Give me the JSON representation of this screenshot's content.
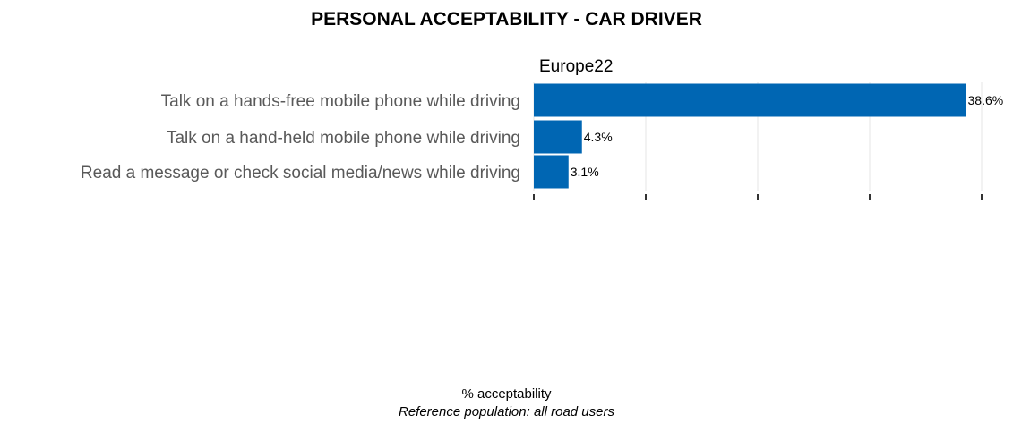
{
  "chart_data": {
    "type": "bar",
    "orientation": "horizontal",
    "title": "PERSONAL ACCEPTABILITY - CAR DRIVER",
    "panel_label": "Europe22",
    "categories": [
      "Talk on a hands-free mobile phone while driving",
      "Talk on a hand-held mobile phone while driving",
      "Read a message or check social media/news while driving"
    ],
    "values": [
      38.6,
      4.3,
      3.1
    ],
    "value_labels": [
      "38.6%",
      "4.3%",
      "3.1%"
    ],
    "xlabel": "% acceptability",
    "ylabel": "",
    "xlim": [
      0,
      40
    ],
    "grid": true,
    "bar_color": "#0066b3"
  },
  "footnote": "Reference population: all road users"
}
